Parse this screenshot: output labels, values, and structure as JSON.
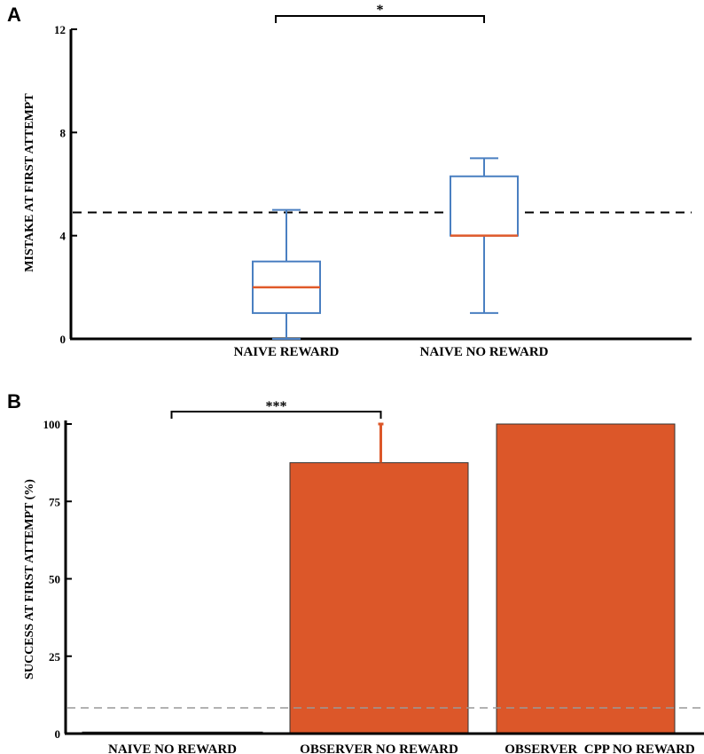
{
  "chart_data": [
    {
      "panel": "A",
      "type": "box",
      "ylabel": "MISTAKE AT FIRST ATTEMPT",
      "ylim": [
        0,
        12
      ],
      "yticks": [
        0,
        4,
        8,
        12
      ],
      "categories": [
        "NAIVE REWARD",
        "NAIVE NO REWARD"
      ],
      "boxes": [
        {
          "name": "NAIVE REWARD",
          "min": 0,
          "q1": 1,
          "median": 2,
          "q3": 3,
          "max": 5
        },
        {
          "name": "NAIVE NO REWARD",
          "min": 1,
          "q1": 4,
          "median": 4,
          "q3": 6.3,
          "max": 7
        }
      ],
      "reference_line": 4.9,
      "significance": {
        "label": "*",
        "between": [
          0,
          1
        ]
      },
      "colors": {
        "box": "#4a7fc1",
        "median": "#e05a2a",
        "axis": "#000000"
      }
    },
    {
      "panel": "B",
      "type": "bar",
      "ylabel": "SUCCESS AT FIRST ATTEMPT (%)",
      "ylim": [
        0,
        100
      ],
      "yticks": [
        0,
        25,
        50,
        75,
        100
      ],
      "categories": [
        "NAIVE NO REWARD",
        "OBSERVER NO REWARD",
        "OBSERVER  CPP NO REWARD"
      ],
      "values": [
        0.5,
        87.5,
        100
      ],
      "error_upper": [
        0,
        12.5,
        0
      ],
      "reference_line": 8.3,
      "significance": {
        "label": "***",
        "between": [
          0,
          1
        ]
      },
      "colors": {
        "bars": [
          "#3b6ea5",
          "#dc5729",
          "#dc5729"
        ],
        "error": "#dc5729",
        "axis": "#000000",
        "reference": "#999999"
      }
    }
  ]
}
